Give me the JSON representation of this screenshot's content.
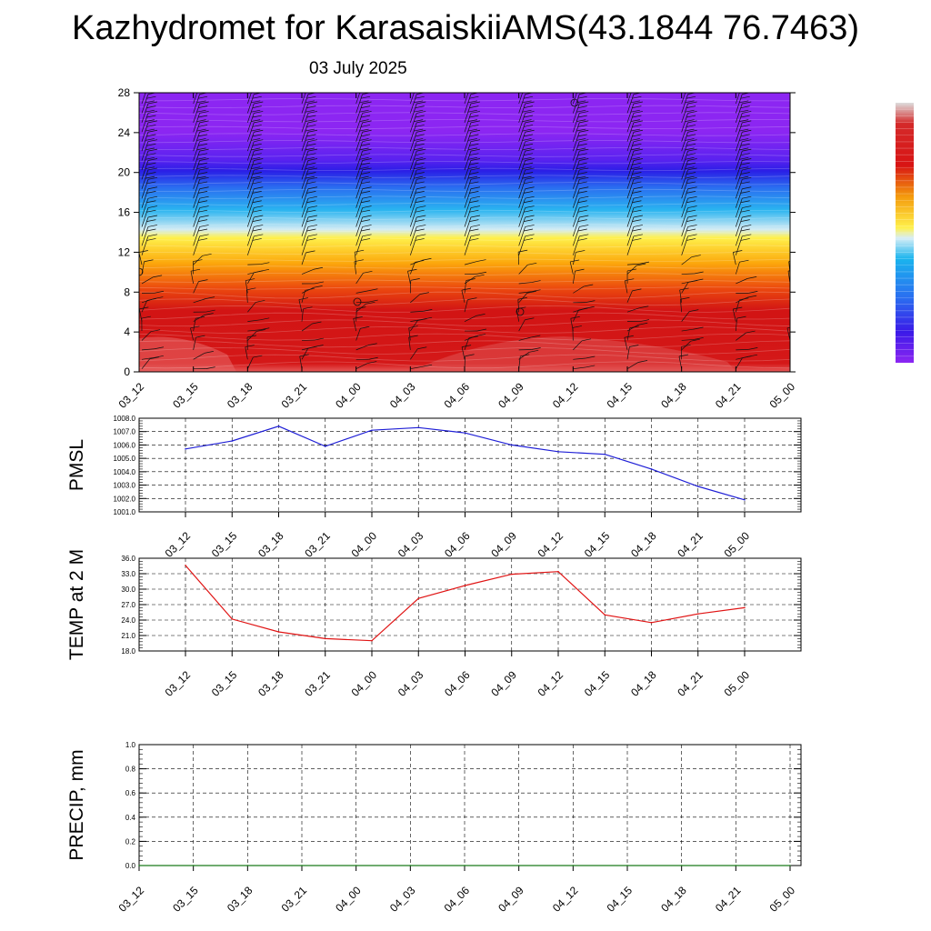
{
  "title": "Kazhydromet for KarasaiskiiAMS(43.1844 76.7463)",
  "date": "03 July 2025",
  "colors": {
    "pmsl_line": "#1f1fd6",
    "temp_line": "#e01414",
    "precip_line": "#1a7a1a",
    "colorbar_top": "#dddddd",
    "colorbar_red": "#d81414",
    "colorbar_yellow": "#fff04a",
    "colorbar_cyan": "#1ab4ee",
    "colorbar_blue": "#3a1ae8",
    "colorbar_violet": "#8c26f2"
  },
  "chart_data": [
    {
      "type": "heatmap",
      "title": "",
      "xlabel": "",
      "ylabel": "",
      "x_ticks": [
        "03_12",
        "03_15",
        "03_18",
        "03_21",
        "04_00",
        "04_03",
        "04_06",
        "04_09",
        "04_12",
        "04_15",
        "04_18",
        "04_21",
        "05_00"
      ],
      "y_ticks": [
        "0",
        "4",
        "8",
        "12",
        "16",
        "20",
        "24",
        "28"
      ],
      "ylim": [
        0,
        28
      ],
      "bands_bottom_to_top": [
        "red",
        "orange",
        "yellow",
        "light-blue",
        "blue",
        "violet"
      ],
      "wind_barbs": true
    },
    {
      "type": "line",
      "ylabel": "PMSL",
      "categories": [
        "03_12",
        "03_15",
        "03_18",
        "03_21",
        "04_00",
        "04_03",
        "04_06",
        "04_09",
        "04_12",
        "04_15",
        "04_18",
        "04_21",
        "05_00"
      ],
      "values": [
        1005.7,
        1006.3,
        1007.4,
        1005.9,
        1007.1,
        1007.3,
        1006.9,
        1006.0,
        1005.5,
        1005.3,
        1004.2,
        1002.9,
        1001.9
      ],
      "ylim": [
        1001.0,
        1008.0
      ],
      "y_ticks": [
        "1001.0",
        "1002.0",
        "1003.0",
        "1004.0",
        "1005.0",
        "1006.0",
        "1007.0",
        "1008.0"
      ],
      "grid": true
    },
    {
      "type": "line",
      "ylabel": "TEMP at 2 M",
      "categories": [
        "03_12",
        "03_15",
        "03_18",
        "03_21",
        "04_00",
        "04_03",
        "04_06",
        "04_09",
        "04_12",
        "04_15",
        "04_18",
        "04_21",
        "05_00"
      ],
      "values": [
        34.6,
        24.2,
        21.7,
        20.4,
        20.0,
        28.2,
        30.7,
        32.9,
        33.4,
        25.0,
        23.5,
        25.2,
        26.4
      ],
      "ylim": [
        18.0,
        36.0
      ],
      "y_ticks": [
        "18.0",
        "21.0",
        "24.0",
        "27.0",
        "30.0",
        "33.0",
        "36.0"
      ],
      "grid": true
    },
    {
      "type": "line",
      "ylabel": "PRECIP, mm",
      "categories": [
        "03_12",
        "03_15",
        "03_18",
        "03_21",
        "04_00",
        "04_03",
        "04_06",
        "04_09",
        "04_12",
        "04_15",
        "04_18",
        "04_21",
        "05_00"
      ],
      "values": [
        0,
        0,
        0,
        0,
        0,
        0,
        0,
        0,
        0,
        0,
        0,
        0,
        0
      ],
      "ylim": [
        0.0,
        1.0
      ],
      "y_ticks": [
        "0.0",
        "0.2",
        "0.4",
        "0.6",
        "0.8",
        "1.0"
      ],
      "grid": true
    }
  ]
}
